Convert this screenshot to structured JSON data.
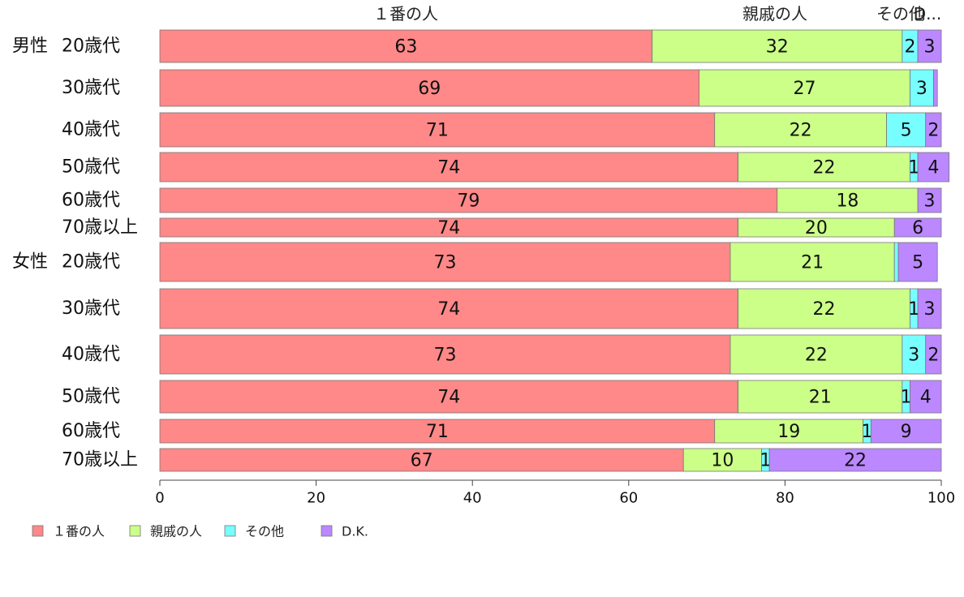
{
  "chart_data": {
    "type": "bar",
    "orientation": "horizontal",
    "stacked": true,
    "xlim": [
      0,
      100
    ],
    "x_ticks": [
      "0",
      "20",
      "40",
      "60",
      "80",
      "100"
    ],
    "grid": false,
    "legend_position": "bottom-left",
    "series": [
      {
        "name": "１番の人",
        "color": "#ff8888",
        "values": [
          63,
          69,
          71,
          74,
          79,
          74,
          73,
          74,
          73,
          74,
          71,
          67
        ]
      },
      {
        "name": "親戚の人",
        "color": "#ccff88",
        "values": [
          32,
          27,
          22,
          22,
          18,
          20,
          21,
          22,
          22,
          21,
          19,
          10
        ]
      },
      {
        "name": "その他",
        "color": "#77ffff",
        "values": [
          2,
          3,
          5,
          1,
          0,
          0,
          0.5,
          1,
          3,
          1,
          1,
          1
        ]
      },
      {
        "name": "D.K.",
        "color": "#bb88ff",
        "values": [
          3,
          0.5,
          2,
          4,
          3,
          6,
          5,
          3,
          2,
          4,
          9,
          22
        ]
      }
    ],
    "value_labels": [
      [
        "63",
        "32",
        "2",
        "3"
      ],
      [
        "69",
        "27",
        "3",
        ""
      ],
      [
        "71",
        "22",
        "5",
        "2"
      ],
      [
        "74",
        "22",
        "1",
        "4"
      ],
      [
        "79",
        "18",
        "",
        "3"
      ],
      [
        "74",
        "20",
        "",
        "6"
      ],
      [
        "73",
        "21",
        "",
        "5"
      ],
      [
        "74",
        "22",
        "1",
        "3"
      ],
      [
        "73",
        "22",
        "3",
        "2"
      ],
      [
        "74",
        "21",
        "1",
        "4"
      ],
      [
        "71",
        "19",
        "1",
        "9"
      ],
      [
        "67",
        "10",
        "1",
        "22"
      ]
    ],
    "groups": [
      {
        "label": "男性",
        "first_row": 0
      },
      {
        "label": "女性",
        "first_row": 6
      }
    ],
    "categories": [
      "20歳代",
      "30歳代",
      "40歳代",
      "50歳代",
      "60歳代",
      "70歳以上",
      "20歳代",
      "30歳代",
      "40歳代",
      "50歳代",
      "60歳代",
      "70歳以上"
    ],
    "column_headers": [
      "１番の人",
      "親戚の人",
      "その他",
      "D..."
    ]
  }
}
